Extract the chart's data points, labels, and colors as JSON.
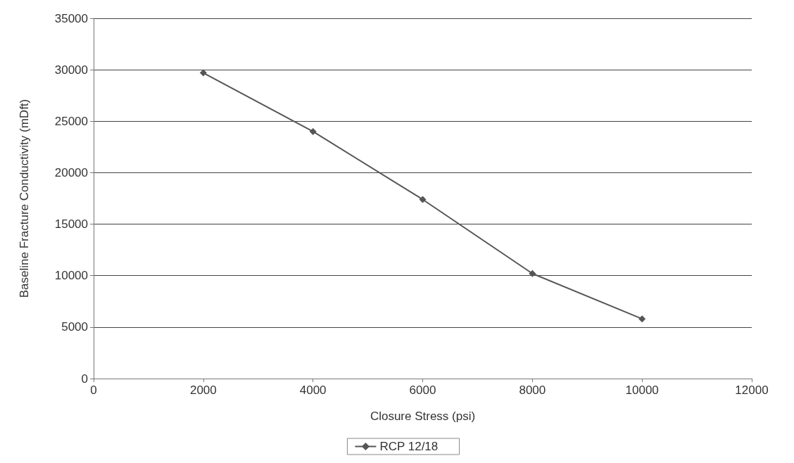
{
  "chart_data": {
    "type": "line",
    "xlabel": "Closure Stress (psi)",
    "ylabel": "Baseline Fracture Conductivity (mDft)",
    "x": [
      2000,
      4000,
      6000,
      8000,
      10000
    ],
    "series": [
      {
        "name": "RCP 12/18",
        "color": "#555555",
        "values": [
          29700,
          24000,
          17400,
          10200,
          5800
        ]
      }
    ],
    "xlim": [
      0,
      12000
    ],
    "xticks": [
      0,
      2000,
      4000,
      6000,
      8000,
      10000,
      12000
    ],
    "ylim": [
      0,
      35000
    ],
    "yticks": [
      0,
      5000,
      10000,
      15000,
      20000,
      25000,
      30000,
      35000
    ],
    "grid": "y",
    "legend": "bottom",
    "marker": "diamond",
    "line_style": "solid"
  }
}
